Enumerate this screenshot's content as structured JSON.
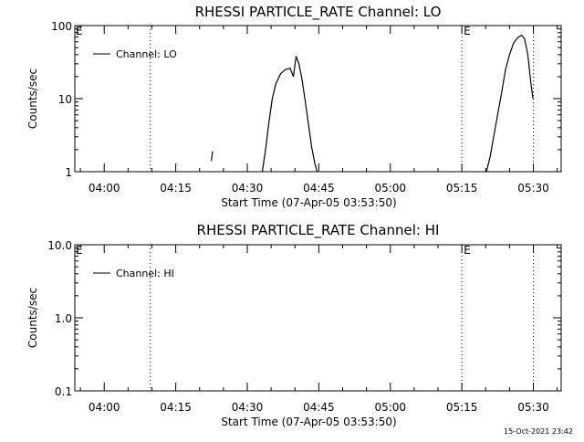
{
  "chart_data": [
    {
      "type": "line",
      "title": "RHESSI PARTICLE_RATE Channel: LO",
      "xlabel": "Start Time (07-Apr-05 03:53:50)",
      "ylabel": "Counts/sec",
      "yscale": "log",
      "ylim": [
        1,
        100
      ],
      "y_ticks": [
        "1",
        "10",
        "100"
      ],
      "xlim": [
        "03:53:50",
        "05:35:50"
      ],
      "x_ticks": [
        "04:00",
        "04:15",
        "04:30",
        "04:45",
        "05:00",
        "05:15",
        "05:30"
      ],
      "grid": false,
      "legend_position": "top-left",
      "series": [
        {
          "name": "Channel: LO",
          "x": [
            "04:22:28",
            "04:22:44",
            "04:33:10",
            "04:33:50",
            "04:34:30",
            "04:35:15",
            "04:36:00",
            "04:37:00",
            "04:38:00",
            "04:39:00",
            "04:39:40",
            "04:40:15",
            "04:40:50",
            "04:41:30",
            "04:42:10",
            "04:42:50",
            "04:43:30",
            "04:44:10",
            "04:44:40"
          ],
          "y": [
            1.4,
            1.9,
            1.0,
            2.0,
            4.5,
            10,
            16,
            22,
            25,
            26,
            20,
            38,
            30,
            18,
            9,
            4.5,
            2.2,
            1.3,
            1.0
          ],
          "segments": [
            [
              0,
              1
            ],
            [
              2,
              18
            ]
          ]
        },
        {
          "name": "Channel: LO",
          "x": [
            "05:20:10",
            "05:20:55",
            "05:21:40",
            "05:22:30",
            "05:23:20",
            "05:24:10",
            "05:25:00",
            "05:25:50",
            "05:26:40",
            "05:27:30",
            "05:28:10",
            "05:28:50",
            "05:29:30",
            "05:29:55"
          ],
          "y": [
            1.0,
            1.6,
            3.0,
            6.0,
            12,
            25,
            40,
            57,
            68,
            74,
            66,
            40,
            16,
            10
          ],
          "segments": [
            [
              0,
              13
            ]
          ]
        }
      ],
      "vlines": [
        {
          "x": "04:09:40",
          "label": ""
        },
        {
          "x": "05:15:00",
          "label": "E"
        },
        {
          "x": "05:30:00",
          "label": ""
        }
      ],
      "corner_label": "E"
    },
    {
      "type": "line",
      "title": "RHESSI PARTICLE_RATE Channel: HI",
      "xlabel": "Start Time (07-Apr-05 03:53:50)",
      "ylabel": "Counts/sec",
      "yscale": "log",
      "ylim": [
        0.1,
        10
      ],
      "y_ticks": [
        "0.1",
        "1.0",
        "10.0"
      ],
      "xlim": [
        "03:53:50",
        "05:35:50"
      ],
      "x_ticks": [
        "04:00",
        "04:15",
        "04:30",
        "04:45",
        "05:00",
        "05:15",
        "05:30"
      ],
      "grid": false,
      "legend_position": "top-left",
      "series": [
        {
          "name": "Channel: HI",
          "x": [],
          "y": []
        }
      ],
      "vlines": [
        {
          "x": "04:09:40",
          "label": ""
        },
        {
          "x": "05:15:00",
          "label": "E"
        },
        {
          "x": "05:30:00",
          "label": ""
        }
      ],
      "corner_label": "E"
    }
  ],
  "footer": {
    "timestamp": "15-Oct-2021 23:42"
  }
}
